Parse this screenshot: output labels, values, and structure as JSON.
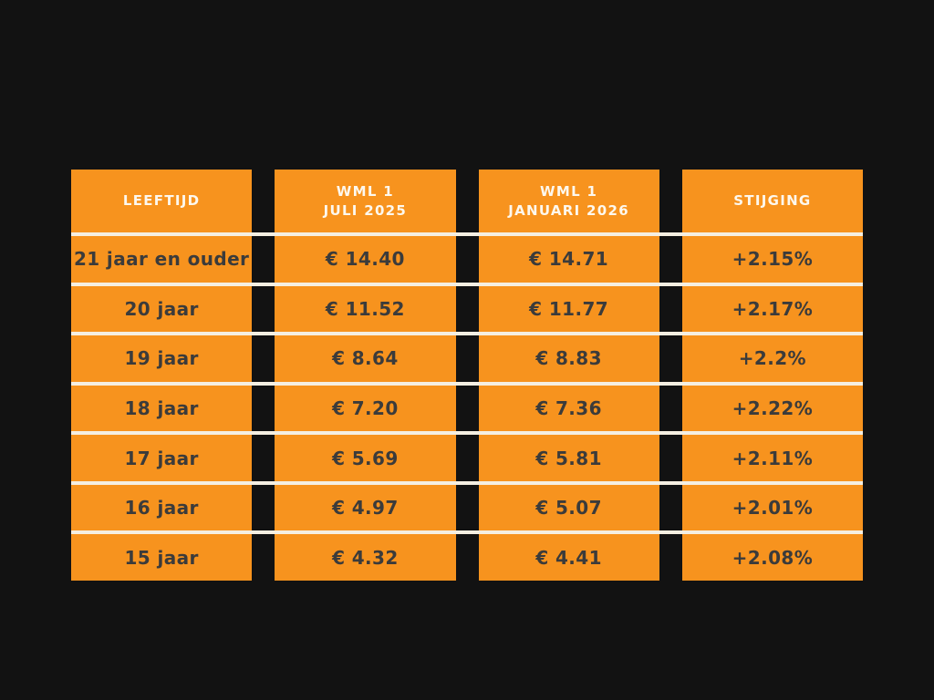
{
  "chart_data": {
    "type": "table",
    "title": "",
    "columns": [
      "LEEFTIJD",
      "WML 1 JULI 2025",
      "WML 1 JANUARI 2026",
      "STIJGING"
    ],
    "rows": [
      [
        "21 jaar en ouder",
        "€ 14.40",
        "€ 14.71",
        "+2.15%"
      ],
      [
        "20 jaar",
        "€ 11.52",
        "€ 11.77",
        "+2.17%"
      ],
      [
        "19 jaar",
        "€ 8.64",
        "€ 8.83",
        "+2.2%"
      ],
      [
        "18 jaar",
        "€ 7.20",
        "€ 7.36",
        "+2.22%"
      ],
      [
        "17 jaar",
        "€ 5.69",
        "€ 5.81",
        "+2.11%"
      ],
      [
        "16 jaar",
        "€ 4.97",
        "€ 5.07",
        "+2.01%"
      ],
      [
        "15 jaar",
        "€ 4.32",
        "€ 4.41",
        "+2.08%"
      ]
    ]
  },
  "table": {
    "headers": [
      {
        "line1": "LEEFTIJD",
        "line2": ""
      },
      {
        "line1": "WML 1",
        "line2": "JULI 2025"
      },
      {
        "line1": "WML 1",
        "line2": "JANUARI 2026"
      },
      {
        "line1": "STIJGING",
        "line2": ""
      }
    ],
    "rows": [
      [
        "21 jaar en ouder",
        "€ 14.40",
        "€ 14.71",
        "+2.15%"
      ],
      [
        "20 jaar",
        "€ 11.52",
        "€ 11.77",
        "+2.17%"
      ],
      [
        "19 jaar",
        "€ 8.64",
        "€ 8.83",
        "+2.2%"
      ],
      [
        "18 jaar",
        "€ 7.20",
        "€ 7.36",
        "+2.22%"
      ],
      [
        "17 jaar",
        "€ 5.69",
        "€ 5.81",
        "+2.11%"
      ],
      [
        "16 jaar",
        "€ 4.97",
        "€ 5.07",
        "+2.01%"
      ],
      [
        "15 jaar",
        "€ 4.32",
        "€ 4.41",
        "+2.08%"
      ]
    ]
  },
  "colors": {
    "background": "#121212",
    "cell_orange": "#F7931E",
    "text_dark": "#3B3B3B",
    "header_text": "#FDF8EE",
    "divider": "#F5EFE2"
  }
}
